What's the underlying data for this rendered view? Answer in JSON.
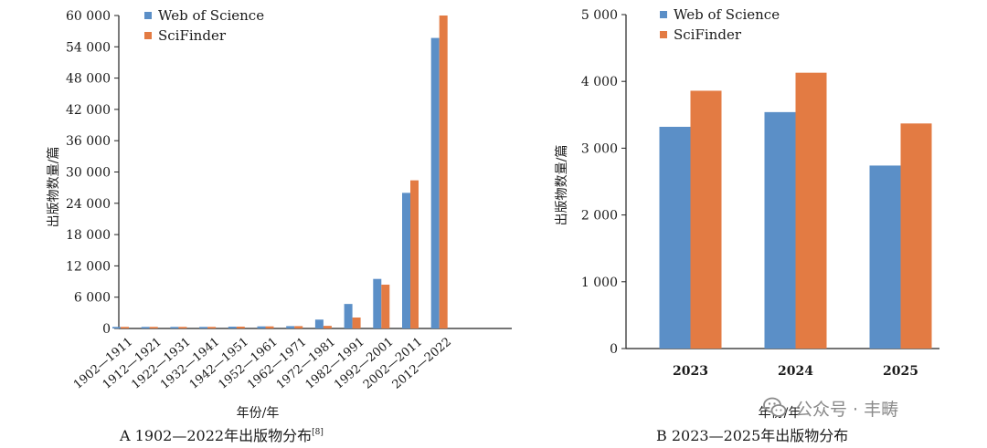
{
  "chart_data": [
    {
      "type": "bar",
      "caption_label": "A",
      "caption_text": "1902—2022年出版物分布",
      "caption_ref": "[8]",
      "xlabel": "年份/年",
      "ylabel": "出版物数量/篇",
      "ylim": [
        0,
        60000
      ],
      "yticks": [
        "0",
        "6 000",
        "12 000",
        "18 000",
        "24 000",
        "30 000",
        "36 000",
        "42 000",
        "48 000",
        "54 000",
        "60 000"
      ],
      "categories": [
        "1902—1911",
        "1912—1921",
        "1922—1931",
        "1932—1941",
        "1942—1951",
        "1952—1961",
        "1962—1971",
        "1972—1981",
        "1982—1991",
        "1992—2001",
        "2002—2011",
        "2012—2022"
      ],
      "series": [
        {
          "name": "Web of Science",
          "color": "#5b8fc7",
          "values": [
            300,
            300,
            300,
            300,
            350,
            400,
            450,
            1700,
            4700,
            9500,
            26000,
            55700
          ]
        },
        {
          "name": "SciFinder",
          "color": "#e37b43",
          "values": [
            300,
            300,
            300,
            300,
            350,
            400,
            450,
            500,
            2100,
            8400,
            28400,
            60000
          ]
        }
      ],
      "legend": "top-left",
      "grid": false
    },
    {
      "type": "bar",
      "caption_label": "B",
      "caption_text": "2023—2025年出版物分布",
      "xlabel": "年份/年",
      "ylabel": "出版物数量/篇",
      "ylim": [
        0,
        5000
      ],
      "yticks": [
        "0",
        "1 000",
        "2 000",
        "3 000",
        "4 000",
        "5 000"
      ],
      "categories": [
        "2023",
        "2024",
        "2025"
      ],
      "series": [
        {
          "name": "Web of Science",
          "color": "#5b8fc7",
          "values": [
            3320,
            3540,
            2740
          ]
        },
        {
          "name": "SciFinder",
          "color": "#e37b43",
          "values": [
            3860,
            4130,
            3370
          ]
        }
      ],
      "legend": "top-left",
      "grid": false
    }
  ],
  "watermark": {
    "text": "公众号 · 丰畴",
    "icon": "wechat-icon"
  }
}
